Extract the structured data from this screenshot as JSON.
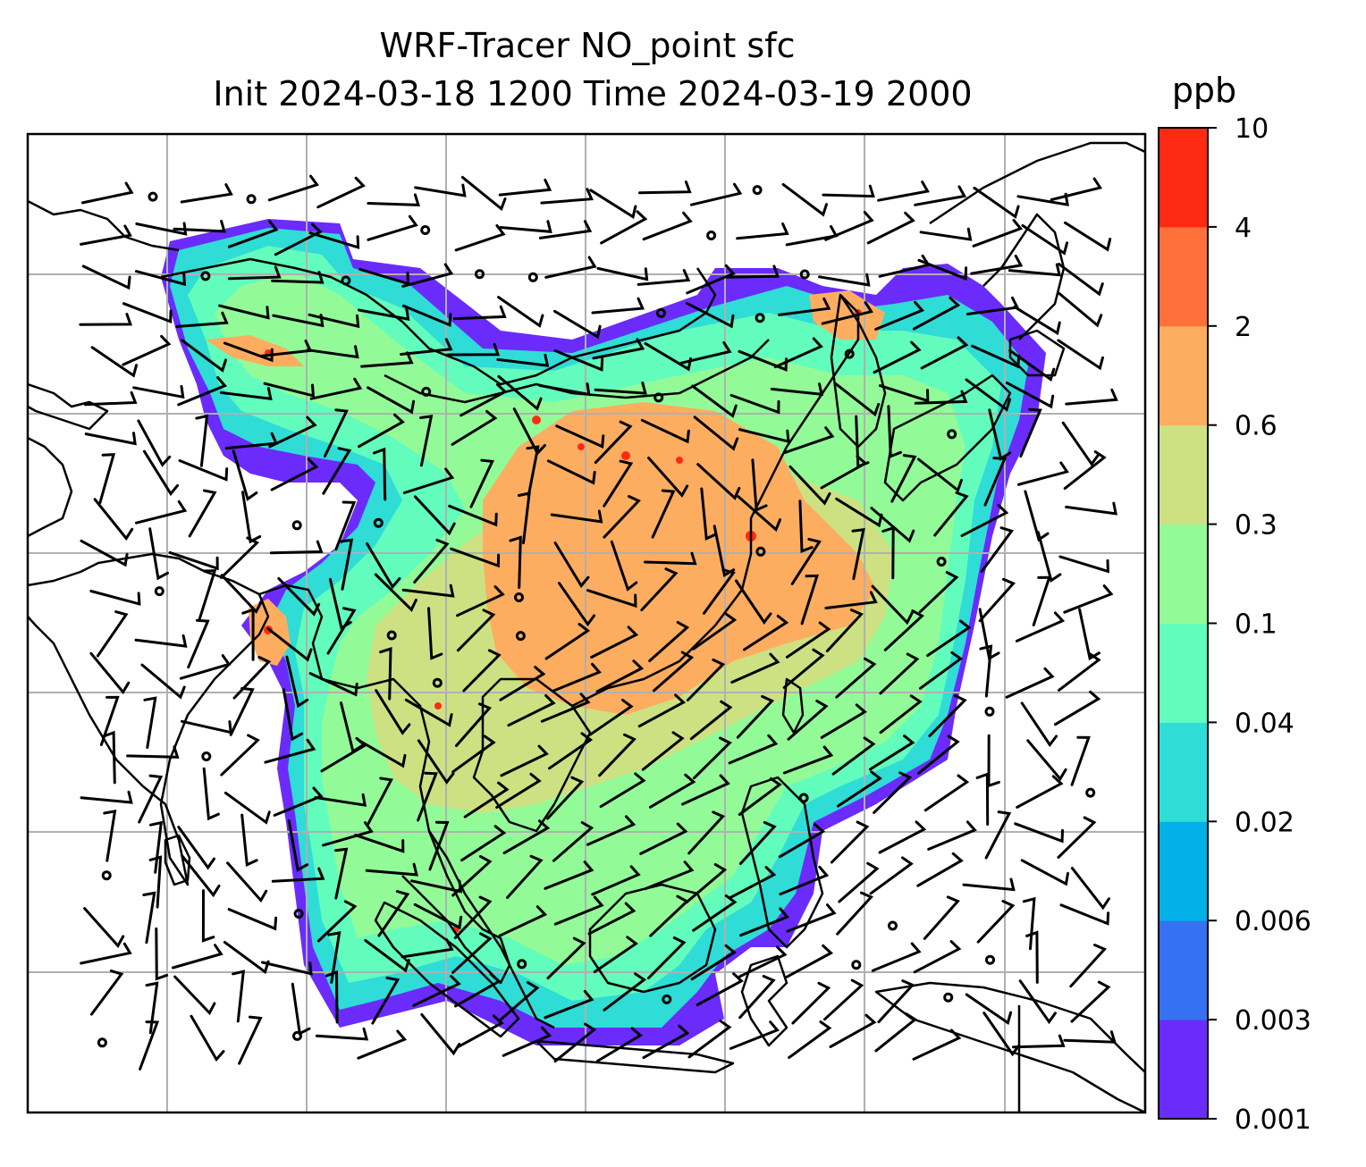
{
  "title": {
    "line1": "WRF-Tracer NO_point sfc",
    "line2": "Init 2024-03-18 1200 Time 2024-03-19 2000"
  },
  "colorbar": {
    "unit": "ppb",
    "ticks": [
      "0.001",
      "0.003",
      "0.006",
      "0.02",
      "0.04",
      "0.1",
      "0.3",
      "0.6",
      "2",
      "4",
      "10"
    ],
    "colors": [
      "#6a2bfb",
      "#3572f2",
      "#03b0e8",
      "#2fdcd6",
      "#62fcbd",
      "#92fb98",
      "#cde183",
      "#fdad60",
      "#ff703b",
      "#ff2a13"
    ]
  },
  "map": {
    "gridlines": true,
    "field_colors": {
      "purple": "#6a2bfb",
      "blue": "#3572f2",
      "cyan": "#2fdcd6",
      "aqua": "#62fcbd",
      "green": "#92fb98",
      "olive": "#cde183",
      "orange": "#fdad60",
      "red": "#ff2a13"
    }
  }
}
